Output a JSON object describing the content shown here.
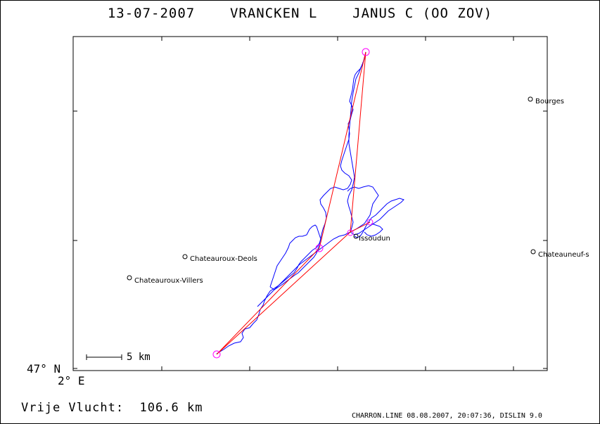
{
  "header": {
    "date": "13-07-2007",
    "pilot": "VRANCKEN L",
    "glider": "JANUS C (OO ZOV)"
  },
  "axes": {
    "lat_label": "47° N",
    "lon_label": "2° E"
  },
  "scale_bar": {
    "label": "5 km"
  },
  "distance": {
    "label": "Vrije Vlucht:",
    "value": "106.6 km"
  },
  "footer": "CHARRON.LINE 08.08.2007, 20:07:36, DISLIN 9.0",
  "places": [
    {
      "name": "Bourges"
    },
    {
      "name": "Issoudun"
    },
    {
      "name": "Chateauroux-Deols"
    },
    {
      "name": "Chateauroux-Villers"
    },
    {
      "name": "Chateauneuf-s"
    }
  ],
  "colors": {
    "task_line": "#ff0000",
    "track_line": "#0000ff",
    "turnpoint": "#ff00ff",
    "frame": "#000000"
  },
  "icons": {
    "turnpoint": "circle-marker",
    "place": "small-circle-marker"
  }
}
